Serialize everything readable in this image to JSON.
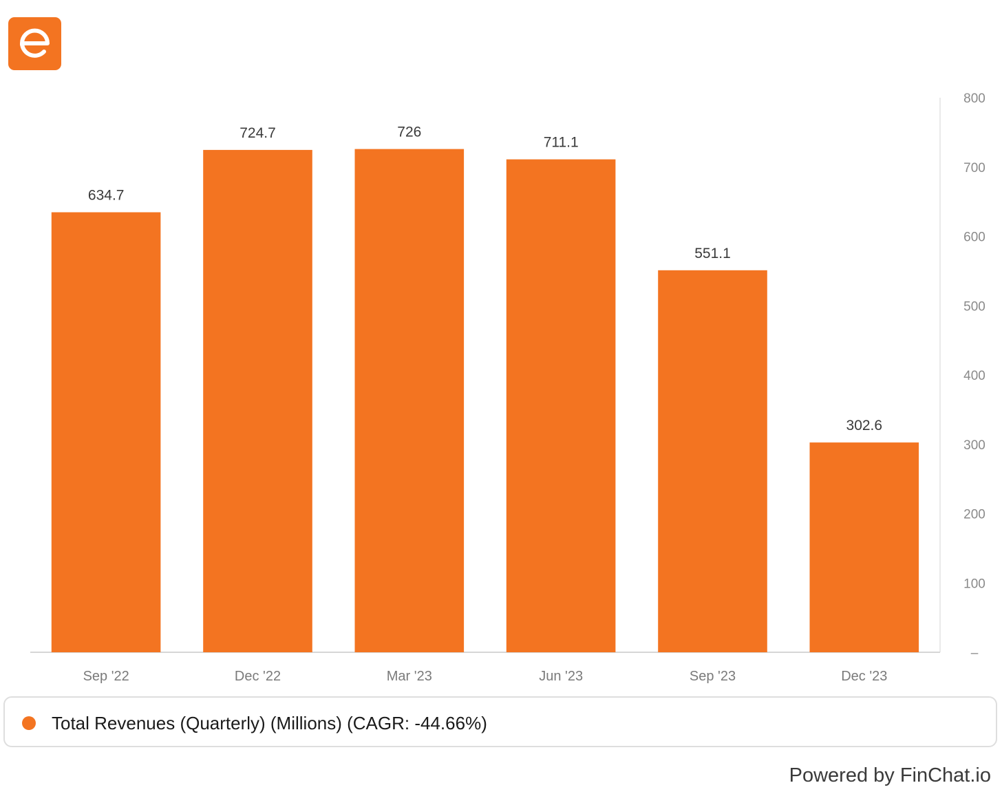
{
  "brand": {
    "logo_icon": "finchat-e-logo-icon",
    "accent_color": "#f37421"
  },
  "chart_data": {
    "type": "bar",
    "categories": [
      "Sep '22",
      "Dec '22",
      "Mar '23",
      "Jun '23",
      "Sep '23",
      "Dec '23"
    ],
    "series": [
      {
        "name": "Total Revenues (Quarterly) (Millions) (CAGR: -44.66%)",
        "values": [
          634.7,
          724.7,
          726,
          711.1,
          551.1,
          302.6
        ],
        "data_labels": [
          "634.7",
          "724.7",
          "726",
          "711.1",
          "551.1",
          "302.6"
        ],
        "color": "#f37421"
      }
    ],
    "ylim": [
      0,
      800
    ],
    "y_axis_side": "right",
    "yticks": [
      0,
      100,
      200,
      300,
      400,
      500,
      600,
      700,
      800
    ],
    "ytick_labels": [
      "–",
      "100",
      "200",
      "300",
      "400",
      "500",
      "600",
      "700",
      "800"
    ],
    "grid": false,
    "legend_position": "bottom"
  },
  "legend": {
    "label": "Total Revenues (Quarterly) (Millions) (CAGR: -44.66%)"
  },
  "footer": {
    "powered_by": "Powered by FinChat.io"
  }
}
